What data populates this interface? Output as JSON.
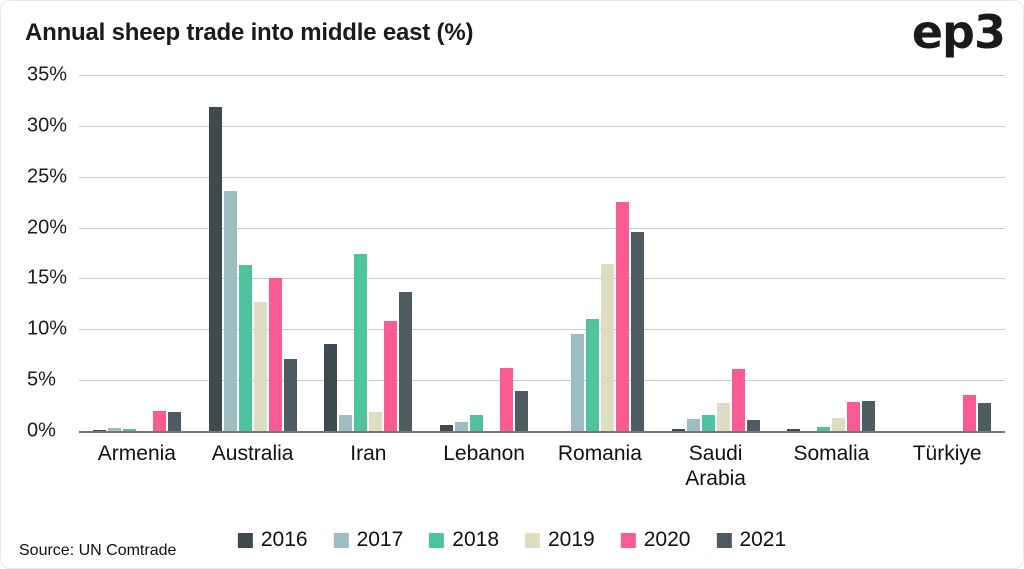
{
  "title": "Annual sheep trade into middle east (%)",
  "logo": "ep3",
  "source": "Source: UN Comtrade",
  "chart_data": {
    "type": "bar",
    "title": "Annual sheep trade into middle east (%)",
    "categories": [
      "Armenia",
      "Australia",
      "Iran",
      "Lebanon",
      "Romania",
      "Saudi Arabia",
      "Somalia",
      "Türkiye"
    ],
    "series": [
      {
        "name": "2016",
        "color": "#3e4a4e",
        "values": [
          0.1,
          31.9,
          8.6,
          0.6,
          0,
          0.2,
          0.2,
          0
        ]
      },
      {
        "name": "2017",
        "color": "#9dbdc3",
        "values": [
          0.3,
          23.6,
          1.6,
          0.9,
          9.5,
          1.2,
          0,
          0
        ]
      },
      {
        "name": "2018",
        "color": "#4fc39e",
        "values": [
          0.15,
          16.3,
          17.4,
          1.6,
          11.0,
          1.6,
          0.4,
          0
        ]
      },
      {
        "name": "2019",
        "color": "#dedcc3",
        "values": [
          0,
          12.7,
          1.9,
          0,
          16.4,
          2.8,
          1.3,
          0
        ]
      },
      {
        "name": "2020",
        "color": "#fb5a92",
        "values": [
          2.0,
          15.0,
          10.8,
          6.2,
          22.5,
          6.1,
          2.9,
          3.5
        ]
      },
      {
        "name": "2021",
        "color": "#4e5c61",
        "values": [
          1.9,
          7.1,
          13.7,
          3.9,
          19.6,
          1.1,
          3.0,
          2.8
        ]
      }
    ],
    "xlabel": "",
    "ylabel": "",
    "ylim": [
      0,
      35
    ],
    "yticks": [
      {
        "v": 35,
        "label": "35%"
      },
      {
        "v": 30,
        "label": "30%"
      },
      {
        "v": 25,
        "label": "25%"
      },
      {
        "v": 20,
        "label": "20%"
      },
      {
        "v": 15,
        "label": "15%"
      },
      {
        "v": 10,
        "label": "10%"
      },
      {
        "v": 5,
        "label": "5%"
      },
      {
        "v": 0,
        "label": "0%"
      }
    ],
    "grid": true,
    "legend_position": "bottom"
  }
}
